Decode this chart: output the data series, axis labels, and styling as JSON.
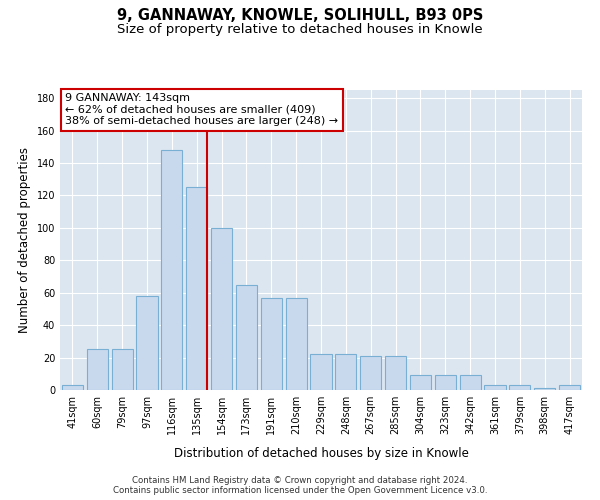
{
  "title": "9, GANNAWAY, KNOWLE, SOLIHULL, B93 0PS",
  "subtitle": "Size of property relative to detached houses in Knowle",
  "xlabel": "Distribution of detached houses by size in Knowle",
  "ylabel": "Number of detached properties",
  "categories": [
    "41sqm",
    "60sqm",
    "79sqm",
    "97sqm",
    "116sqm",
    "135sqm",
    "154sqm",
    "173sqm",
    "191sqm",
    "210sqm",
    "229sqm",
    "248sqm",
    "267sqm",
    "285sqm",
    "304sqm",
    "323sqm",
    "342sqm",
    "361sqm",
    "379sqm",
    "398sqm",
    "417sqm"
  ],
  "values": [
    3,
    25,
    25,
    58,
    148,
    125,
    100,
    65,
    57,
    57,
    22,
    22,
    21,
    21,
    9,
    9,
    9,
    3,
    3,
    1,
    3
  ],
  "bar_color": "#c9d9ed",
  "bar_edge_color": "#7aafd4",
  "highlight_line_color": "#cc0000",
  "annotation_line1": "9 GANNAWAY: 143sqm",
  "annotation_line2": "← 62% of detached houses are smaller (409)",
  "annotation_line3": "38% of semi-detached houses are larger (248) →",
  "annotation_box_color": "#ffffff",
  "annotation_box_edge_color": "#cc0000",
  "ylim": [
    0,
    185
  ],
  "yticks": [
    0,
    20,
    40,
    60,
    80,
    100,
    120,
    140,
    160,
    180
  ],
  "background_color": "#dce6f0",
  "footer_text": "Contains HM Land Registry data © Crown copyright and database right 2024.\nContains public sector information licensed under the Open Government Licence v3.0.",
  "title_fontsize": 10.5,
  "subtitle_fontsize": 9.5,
  "annotation_fontsize": 8,
  "tick_fontsize": 7,
  "ylabel_fontsize": 8.5,
  "xlabel_fontsize": 8.5,
  "redline_x": 5.42
}
